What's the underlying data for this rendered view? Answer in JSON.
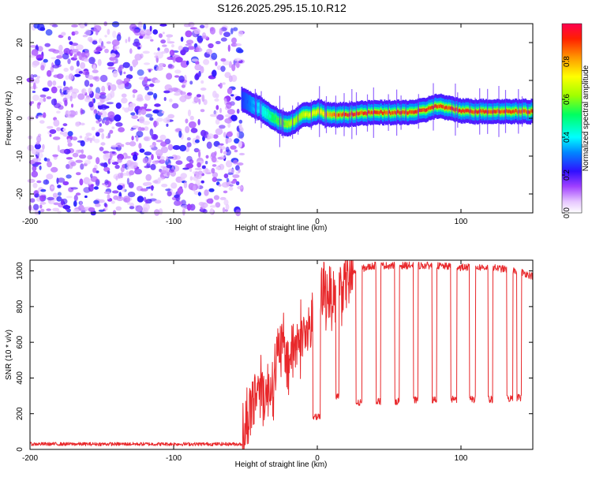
{
  "title": "S126.2025.295.15.10.R12",
  "chart_data": [
    {
      "type": "heatmap",
      "xlabel": "Height of straight line (km)",
      "ylabel": "Frequency (Hz)",
      "xlim": [
        -200,
        150
      ],
      "ylim": [
        -25,
        25
      ],
      "x_ticks": [
        -200,
        -100,
        0,
        100
      ],
      "y_ticks": [
        -20,
        -10,
        0,
        10,
        20
      ],
      "colorbar": {
        "label": "Normalized spectral amplitude",
        "range": [
          0,
          1
        ],
        "ticks": [
          0.0,
          0.2,
          0.4,
          0.6,
          0.8
        ],
        "tick_labels": [
          "0.0",
          "0.2",
          "0.4",
          "0.6",
          "0.8"
        ]
      },
      "noise_region": {
        "x": [
          -200,
          -52
        ],
        "f": [
          -25,
          25
        ],
        "amplitude_range": [
          0.05,
          0.25
        ]
      },
      "signal_ridge": {
        "x": [
          -53,
          -48,
          -45,
          -40,
          -35,
          -30,
          -25,
          -20,
          -15,
          -10,
          -5,
          0,
          5,
          10,
          20,
          30,
          40,
          50,
          60,
          70,
          75,
          80,
          85,
          90,
          100,
          110,
          120,
          130,
          140,
          150
        ],
        "f": [
          5,
          4,
          3.5,
          2.5,
          1,
          0,
          -1.2,
          -1.5,
          -0.5,
          1.2,
          0.8,
          2,
          1,
          0.8,
          1,
          1.3,
          1.5,
          1.5,
          1.5,
          1.8,
          2.2,
          3,
          3.2,
          2.7,
          2,
          1.8,
          1.8,
          1.8,
          1.8,
          1.8
        ],
        "amplitude": [
          0.25,
          0.3,
          0.35,
          0.4,
          0.45,
          0.55,
          0.6,
          0.65,
          0.65,
          0.7,
          0.7,
          0.75,
          0.8,
          0.85,
          0.95,
          0.95,
          0.95,
          0.95,
          0.95,
          0.95,
          0.95,
          0.95,
          0.95,
          0.95,
          0.95,
          0.95,
          0.95,
          0.95,
          0.95,
          0.95
        ]
      }
    },
    {
      "type": "line",
      "xlabel": "Height of straight line (km)",
      "ylabel": "SNR (10 * v/v)",
      "xlim": [
        -200,
        150
      ],
      "ylim": [
        0,
        1060
      ],
      "x_ticks": [
        -200,
        -100,
        0,
        100
      ],
      "y_ticks": [
        0,
        200,
        400,
        600,
        800,
        1000
      ],
      "color": "#e8282b",
      "series": [
        {
          "name": "SNR",
          "x": [
            -200,
            -60,
            -52,
            -50,
            -45,
            -40,
            -35,
            -30,
            -25,
            -20,
            -15,
            -10,
            -5,
            0,
            5,
            10,
            15,
            20,
            25,
            30,
            35,
            40,
            50,
            60,
            80,
            100,
            120,
            140,
            150
          ],
          "values": [
            30,
            30,
            30,
            120,
            280,
            380,
            300,
            420,
            580,
            500,
            600,
            640,
            660,
            760,
            900,
            860,
            900,
            960,
            990,
            1010,
            1020,
            1030,
            1030,
            1030,
            1030,
            1020,
            1020,
            1000,
            970
          ]
        }
      ],
      "dropouts": [
        {
          "x": [
            -3,
            2
          ],
          "level": 180
        },
        {
          "x": [
            13,
            15
          ],
          "level": 300
        },
        {
          "x": [
            27,
            31
          ],
          "level": 260
        },
        {
          "x": [
            41,
            44
          ],
          "level": 270
        },
        {
          "x": [
            54,
            57
          ],
          "level": 270
        },
        {
          "x": [
            67,
            70
          ],
          "level": 275
        },
        {
          "x": [
            80,
            83
          ],
          "level": 275
        },
        {
          "x": [
            93,
            97
          ],
          "level": 280
        },
        {
          "x": [
            106,
            110
          ],
          "level": 280
        },
        {
          "x": [
            119,
            122
          ],
          "level": 280
        },
        {
          "x": [
            132,
            136
          ],
          "level": 285
        },
        {
          "x": [
            139,
            142
          ],
          "level": 290
        }
      ]
    }
  ]
}
